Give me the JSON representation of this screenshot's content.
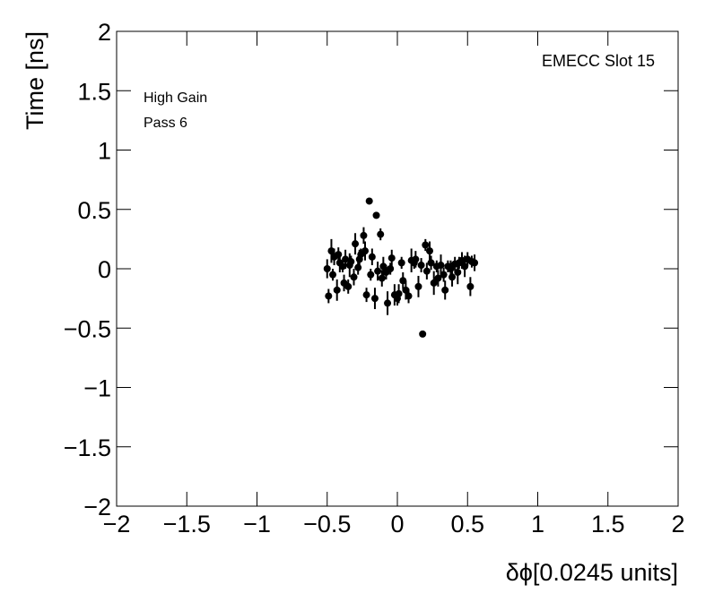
{
  "chart_data": {
    "type": "scatter",
    "xlabel": "δϕ[0.0245 units]",
    "ylabel": "Time [ns]",
    "annotations": [
      "EMECC Slot 15",
      "High Gain",
      "Pass 6"
    ],
    "xlim": [
      -2,
      2
    ],
    "ylim": [
      -2,
      2
    ],
    "xticks": [
      {
        "value": -2,
        "label": "−2"
      },
      {
        "value": -1.5,
        "label": "−1.5"
      },
      {
        "value": -1,
        "label": "−1"
      },
      {
        "value": -0.5,
        "label": "−0.5"
      },
      0,
      0.5,
      1,
      1.5,
      2
    ],
    "yticks": [
      {
        "value": -2,
        "label": "−2"
      },
      {
        "value": -1.5,
        "label": "−1.5"
      },
      {
        "value": -1,
        "label": "−1"
      },
      {
        "value": -0.5,
        "label": "−0.5"
      },
      0,
      0.5,
      1,
      1.5,
      2
    ],
    "color": "#000000",
    "x": [
      -0.5,
      -0.49,
      -0.47,
      -0.46,
      -0.45,
      -0.43,
      -0.42,
      -0.41,
      -0.39,
      -0.38,
      -0.37,
      -0.35,
      -0.34,
      -0.33,
      -0.31,
      -0.3,
      -0.28,
      -0.27,
      -0.26,
      -0.24,
      -0.23,
      -0.22,
      -0.2,
      -0.19,
      -0.18,
      -0.16,
      -0.15,
      -0.14,
      -0.12,
      -0.11,
      -0.1,
      -0.08,
      -0.07,
      -0.05,
      -0.04,
      -0.02,
      0,
      0.01,
      0.03,
      0.04,
      0.06,
      0.08,
      0.1,
      0.12,
      0.13,
      0.15,
      0.17,
      0.18,
      0.2,
      0.21,
      0.23,
      0.24,
      0.26,
      0.28,
      0.29,
      0.31,
      0.33,
      0.34,
      0.36,
      0.38,
      0.39,
      0.41,
      0.43,
      0.44,
      0.46,
      0.48,
      0.5,
      0.52,
      0.53,
      0.55
    ],
    "y": [
      0,
      -0.23,
      0.15,
      -0.05,
      0.1,
      -0.18,
      0.12,
      0.05,
      0.02,
      -0.12,
      0.08,
      -0.15,
      0.03,
      0.06,
      -0.07,
      0.21,
      0.01,
      0.08,
      0.12,
      0.28,
      0.15,
      -0.22,
      0.57,
      -0.05,
      0.1,
      -0.25,
      0.45,
      -0.02,
      0.29,
      -0.08,
      0.02,
      -0.03,
      -0.29,
      0,
      0.09,
      -0.22,
      -0.25,
      -0.21,
      0.05,
      -0.1,
      -0.18,
      -0.23,
      0.07,
      0.05,
      0.08,
      -0.15,
      0.03,
      -0.55,
      0.2,
      -0.02,
      0.15,
      0.05,
      -0.12,
      0.02,
      -0.08,
      0.03,
      -0.05,
      -0.18,
      0.02,
      0,
      -0.07,
      0.04,
      -0.03,
      0.05,
      0.07,
      0.02,
      0.08,
      -0.15,
      0.06,
      0.05
    ],
    "errors": [
      0.08,
      0.06,
      0.1,
      0.05,
      0.07,
      0.09,
      0.06,
      0.08,
      0.05,
      0.07,
      0.08,
      0.06,
      0.1,
      0.05,
      0.07,
      0.09,
      0.06,
      0.08,
      0.05,
      0.07,
      0.08,
      0.06,
      0.01,
      0.05,
      0.07,
      0.09,
      0.01,
      0.08,
      0.05,
      0.07,
      0.08,
      0.06,
      0.1,
      0.05,
      0.07,
      0.09,
      0.06,
      0.08,
      0.05,
      0.07,
      0.08,
      0.06,
      0.1,
      0.05,
      0.07,
      0.09,
      0.06,
      0.01,
      0.05,
      0.07,
      0.08,
      0.06,
      0.1,
      0.05,
      0.07,
      0.09,
      0.06,
      0.08,
      0.05,
      0.07,
      0.08,
      0.06,
      0.1,
      0.05,
      0.07,
      0.09,
      0.06,
      0.08,
      0.05,
      0.07
    ]
  }
}
